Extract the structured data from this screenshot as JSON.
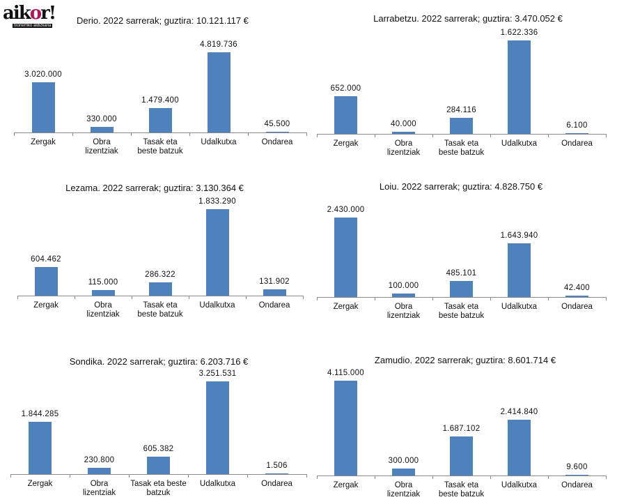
{
  "logo": {
    "text": "aikor!",
    "subtitle": "txorierriko aldizkaria"
  },
  "colors": {
    "bar": "#4f81bd",
    "axis": "#8a8a8a"
  },
  "chart_data": [
    {
      "type": "bar",
      "title": "Derio. 2022 sarrerak; guztira: 10.121.117 €",
      "categories": [
        "Zergak",
        "Obra   lizentziak",
        "Tasak eta beste batzuk",
        "Udalkutxa",
        "Ondarea"
      ],
      "values": [
        3020000,
        330000,
        1479400,
        4819736,
        45500
      ],
      "labels": [
        "3.020.000",
        "330.000",
        "1.479.400",
        "4.819.736",
        "45.500"
      ]
    },
    {
      "type": "bar",
      "title": "Larrabetzu. 2022 sarrerak; guztira: 3.470.052 €",
      "categories": [
        "Zergak",
        "Obra   lizentziak",
        "Tasak eta beste batzuk",
        "Udalkutxa",
        "Ondarea"
      ],
      "values": [
        652000,
        40000,
        284116,
        1622336,
        6100
      ],
      "labels": [
        "652.000",
        "40.000",
        "284.116",
        "1.622.336",
        "6.100"
      ]
    },
    {
      "type": "bar",
      "title": "Lezama. 2022 sarrerak; guztira: 3.130.364 €",
      "categories": [
        "Zergak",
        "Obra   lizentziak",
        "Tasak eta beste batzuk",
        "Udalkutxa",
        "Ondarea"
      ],
      "values": [
        604462,
        115000,
        286322,
        1833290,
        131902
      ],
      "labels": [
        "604.462",
        "115.000",
        "286.322",
        "1.833.290",
        "131.902"
      ]
    },
    {
      "type": "bar",
      "title": "Loiu. 2022 sarrerak; guztira: 4.828.750 €",
      "categories": [
        "Zergak",
        "Obra   lizentziak",
        "Tasak eta beste batzuk",
        "Udalkutxa",
        "Ondarea"
      ],
      "values": [
        2430000,
        100000,
        485101,
        1643940,
        42400
      ],
      "labels": [
        "2.430.000",
        "100.000",
        "485.101",
        "1.643.940",
        "42.400"
      ]
    },
    {
      "type": "bar",
      "title": "Sondika. 2022 sarrerak; guztira: 6.203.716 €",
      "categories": [
        "Zergak",
        "Obra   lizentziak",
        "Tasak eta beste batzuk",
        "Udalkutxa",
        "Ondarea"
      ],
      "values": [
        1844285,
        230800,
        605382,
        3251531,
        1506
      ],
      "labels": [
        "1.844.285",
        "230.800",
        "605.382",
        "3.251.531",
        "1.506"
      ]
    },
    {
      "type": "bar",
      "title": "Zamudio. 2022 sarrerak; guztira: 8.601.714 €",
      "categories": [
        "Zergak",
        "Obra   lizentziak",
        "Tasak eta beste batzuk",
        "Udalkutxa",
        "Ondarea"
      ],
      "values": [
        4115000,
        300000,
        1687102,
        2414840,
        9600
      ],
      "labels": [
        "4.115.000",
        "300.000",
        "1.687.102",
        "2.414.840",
        "9.600"
      ]
    }
  ]
}
